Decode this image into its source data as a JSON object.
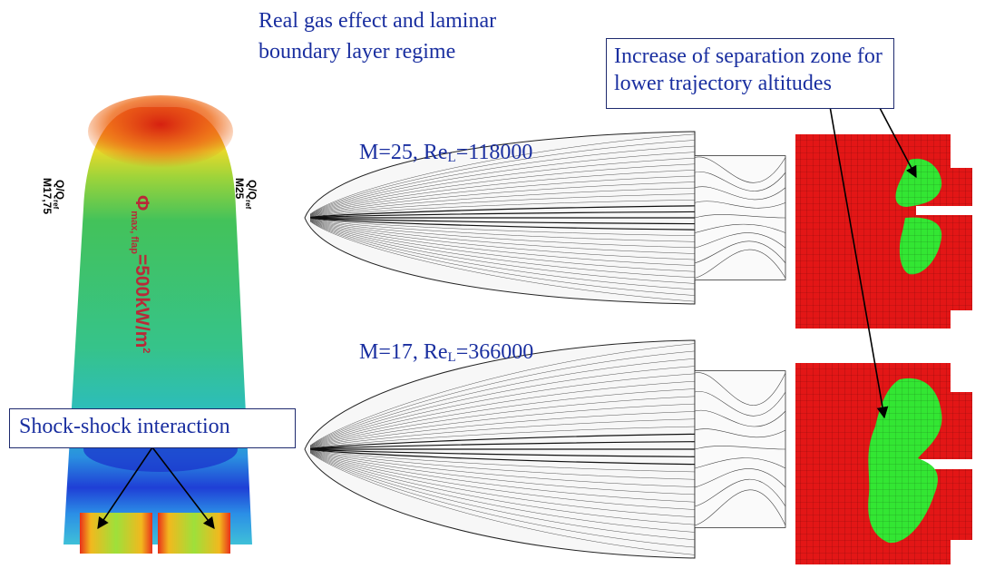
{
  "heading": {
    "line1": "Real gas effect and laminar",
    "line2": "boundary layer regime"
  },
  "callouts": {
    "separation": {
      "line1": "Increase of separation zone for",
      "line2": "lower trajectory altitudes"
    },
    "shock": "Shock-shock interaction"
  },
  "cases": [
    {
      "mach": "M=25, Re",
      "sub": "L",
      "re": "=118000"
    },
    {
      "mach": "M=17, Re",
      "sub": "L",
      "re": "=366000"
    }
  ],
  "vehicle": {
    "left_label_1": "M17,75",
    "left_label_2": "Q/Q",
    "left_label_2_sub": "ref",
    "right_label_1": "M25",
    "right_label_2": "Q/Q",
    "right_label_2_sub": "ref",
    "flux_label_phi": "Φ",
    "flux_label_sub": "max, flap",
    "flux_label_value": "=500kW/m",
    "flux_label_exp": "2"
  },
  "colors": {
    "text": "#1a2fa0",
    "separation": "#33e633",
    "surface": "#e31616"
  }
}
